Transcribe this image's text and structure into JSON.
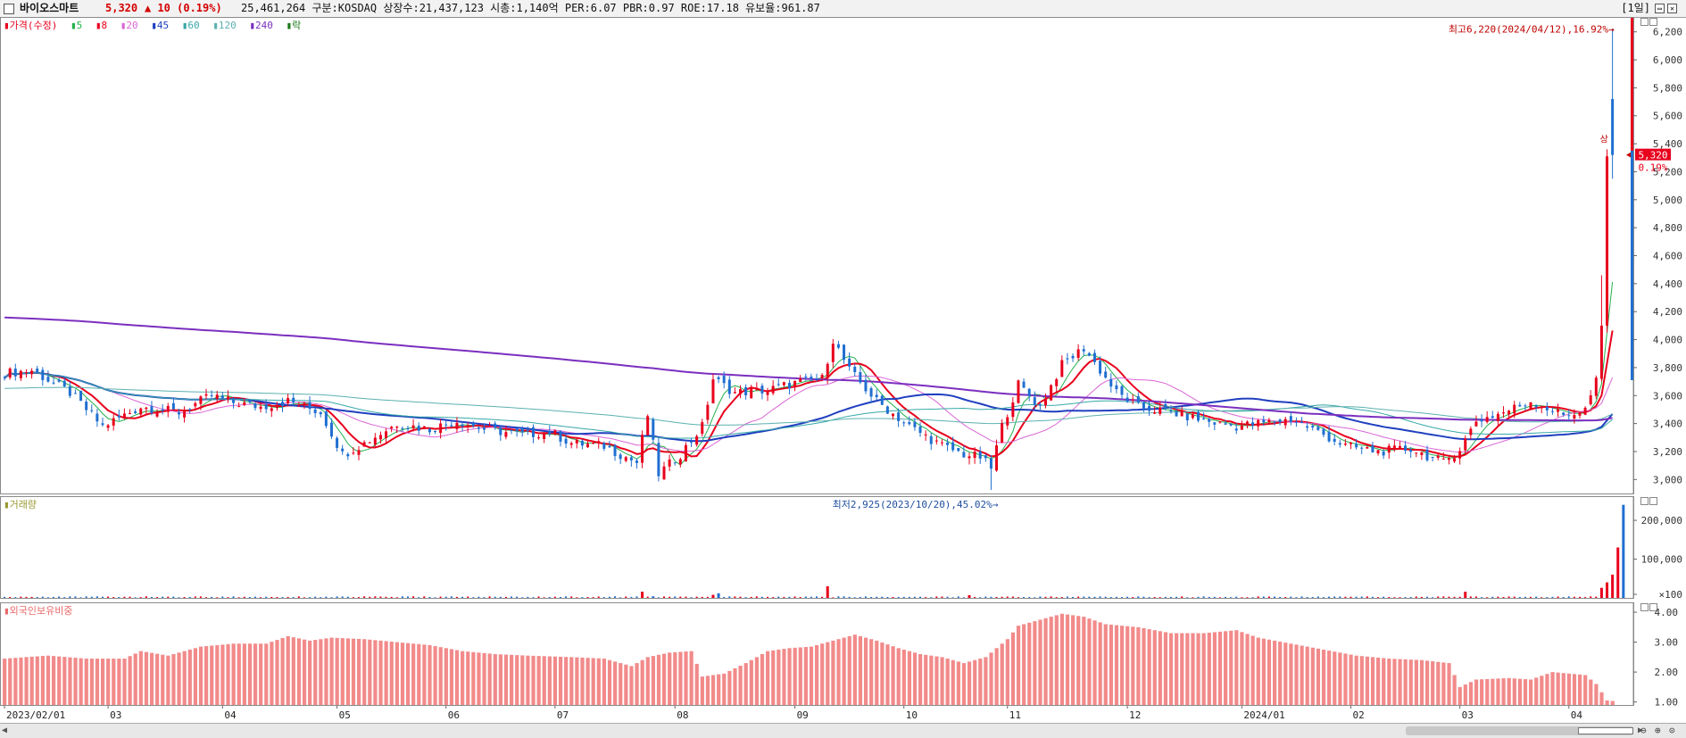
{
  "header": {
    "stock_name": "바이오스마트",
    "price": "5,320",
    "change": "▲ 10 (0.19%)",
    "stats": "25,461,264  구분:KOSDAQ 상장수:21,437,123 시총:1,140억 PER:6.07 PBR:0.97 ROE:17.18 유보율:961.87",
    "period": "[1일]"
  },
  "legend": {
    "price_label": "가격(수정)",
    "ma_items": [
      {
        "label": "5",
        "color": "#22b14c"
      },
      {
        "label": "8",
        "color": "#e8001c"
      },
      {
        "label": "20",
        "color": "#d966d6"
      },
      {
        "label": "45",
        "color": "#1f3fbf"
      },
      {
        "label": "60",
        "color": "#38a8a8"
      },
      {
        "label": "120",
        "color": "#5db0b0"
      },
      {
        "label": "240",
        "color": "#7b2fbf"
      },
      {
        "label": "락",
        "color": "#1a7a1a"
      }
    ],
    "volume_label": "거래량",
    "foreign_label": "외국인보유비중"
  },
  "annotations": {
    "high": "최고6,220(2024/04/12),16.92%→",
    "low": "최저2,925(2023/10/20),45.02%→",
    "current_price": "5,320",
    "current_pct": "0.19%",
    "arrow_char": "상"
  },
  "colors": {
    "up": "#e8001c",
    "down": "#1f6fd1",
    "grid": "#dcdcdc"
  },
  "chart_data": [
    {
      "type": "candlestick",
      "title": "가격(수정)",
      "y_ticks": [
        3000,
        3200,
        3400,
        3600,
        3800,
        4000,
        4200,
        4400,
        4600,
        4800,
        5000,
        5200,
        5400,
        5600,
        5800,
        6000,
        6200
      ],
      "y_tick_labels": [
        "3,000",
        "3,200",
        "3,400",
        "3,600",
        "3,800",
        "4,000",
        "4,200",
        "4,400",
        "4,600",
        "4,800",
        "5,000",
        "5,200",
        "5,400",
        "5,600",
        "5,800",
        "6,000",
        "6,200"
      ],
      "ylim": [
        2900,
        6300
      ],
      "x_labels": [
        "2023/02/01",
        "03",
        "04",
        "05",
        "06",
        "07",
        "08",
        "09",
        "10",
        "11",
        "12",
        "2024/01",
        "02",
        "03",
        "04"
      ],
      "x_label_index": [
        0,
        19,
        40,
        61,
        81,
        101,
        123,
        145,
        165,
        184,
        206,
        227,
        247,
        267,
        287
      ],
      "n_bars": 295,
      "close_keypoints": [
        [
          0,
          3760
        ],
        [
          5,
          3780
        ],
        [
          12,
          3620
        ],
        [
          18,
          3380
        ],
        [
          25,
          3520
        ],
        [
          32,
          3480
        ],
        [
          38,
          3600
        ],
        [
          42,
          3550
        ],
        [
          47,
          3520
        ],
        [
          52,
          3560
        ],
        [
          58,
          3480
        ],
        [
          62,
          3180
        ],
        [
          66,
          3260
        ],
        [
          72,
          3400
        ],
        [
          78,
          3360
        ],
        [
          83,
          3420
        ],
        [
          88,
          3360
        ],
        [
          95,
          3320
        ],
        [
          100,
          3340
        ],
        [
          104,
          3260
        ],
        [
          110,
          3240
        ],
        [
          116,
          3120
        ],
        [
          118,
          3460
        ],
        [
          120,
          3040
        ],
        [
          124,
          3180
        ],
        [
          128,
          3380
        ],
        [
          130,
          3720
        ],
        [
          134,
          3620
        ],
        [
          140,
          3640
        ],
        [
          146,
          3700
        ],
        [
          150,
          3720
        ],
        [
          152,
          4000
        ],
        [
          155,
          3780
        ],
        [
          160,
          3560
        ],
        [
          166,
          3380
        ],
        [
          172,
          3240
        ],
        [
          176,
          3180
        ],
        [
          179,
          3160
        ],
        [
          181,
          3080
        ],
        [
          183,
          3380
        ],
        [
          186,
          3680
        ],
        [
          190,
          3520
        ],
        [
          194,
          3820
        ],
        [
          198,
          3940
        ],
        [
          204,
          3620
        ],
        [
          208,
          3520
        ],
        [
          214,
          3480
        ],
        [
          220,
          3420
        ],
        [
          226,
          3380
        ],
        [
          230,
          3400
        ],
        [
          236,
          3430
        ],
        [
          240,
          3360
        ],
        [
          246,
          3240
        ],
        [
          252,
          3200
        ],
        [
          258,
          3220
        ],
        [
          264,
          3120
        ],
        [
          267,
          3220
        ],
        [
          270,
          3420
        ],
        [
          275,
          3480
        ],
        [
          280,
          3560
        ],
        [
          286,
          3460
        ],
        [
          290,
          3500
        ],
        [
          292,
          3700
        ],
        [
          293,
          4080
        ],
        [
          294,
          5310
        ],
        [
          295,
          5320
        ]
      ],
      "ma_series": [
        {
          "name": "5",
          "color": "#22b14c"
        },
        {
          "name": "8",
          "color": "#e8001c"
        },
        {
          "name": "20",
          "color": "#d966d6"
        },
        {
          "name": "45",
          "color": "#1f3fbf"
        },
        {
          "name": "60",
          "color": "#38a8a8"
        },
        {
          "name": "120",
          "color": "#5db0b0"
        },
        {
          "name": "240",
          "color": "#7b2fbf"
        }
      ],
      "high": {
        "value": 6220,
        "date": "2024/04/12",
        "pct": 16.92
      },
      "low": {
        "value": 2925,
        "date": "2023/10/20",
        "pct": 45.02
      },
      "current": 5320
    },
    {
      "type": "bar",
      "title": "거래량",
      "y_tick_labels": [
        "200,000",
        "100,000",
        "×100"
      ],
      "y_ticks": [
        200000,
        100000,
        0
      ],
      "ylim": [
        0,
        260000
      ],
      "spikes": [
        [
          117,
          16000,
          "up"
        ],
        [
          119,
          4000,
          "down"
        ],
        [
          130,
          8000,
          "up"
        ],
        [
          131,
          12000,
          "down"
        ],
        [
          151,
          30000,
          "up"
        ],
        [
          177,
          7000,
          "up"
        ],
        [
          268,
          16000,
          "up"
        ],
        [
          293,
          26000,
          "up"
        ],
        [
          294,
          40000,
          "up"
        ],
        [
          295,
          60000,
          "up"
        ],
        [
          296,
          130000,
          "up"
        ],
        [
          297,
          240000,
          "down"
        ]
      ]
    },
    {
      "type": "bar",
      "title": "외국인보유비중",
      "y_tick_labels": [
        "4.00",
        "3.00",
        "2.00",
        "1.00"
      ],
      "y_ticks": [
        4.0,
        3.0,
        2.0,
        1.0
      ],
      "ylim": [
        0.9,
        4.3
      ],
      "keypoints": [
        [
          0,
          2.45
        ],
        [
          8,
          2.55
        ],
        [
          15,
          2.45
        ],
        [
          22,
          2.45
        ],
        [
          25,
          2.7
        ],
        [
          30,
          2.55
        ],
        [
          36,
          2.85
        ],
        [
          42,
          2.95
        ],
        [
          48,
          2.95
        ],
        [
          52,
          3.2
        ],
        [
          56,
          3.05
        ],
        [
          60,
          3.15
        ],
        [
          66,
          3.1
        ],
        [
          72,
          3.0
        ],
        [
          78,
          2.9
        ],
        [
          84,
          2.7
        ],
        [
          90,
          2.6
        ],
        [
          96,
          2.55
        ],
        [
          104,
          2.5
        ],
        [
          110,
          2.45
        ],
        [
          115,
          2.2
        ],
        [
          118,
          2.5
        ],
        [
          122,
          2.65
        ],
        [
          126,
          2.7
        ],
        [
          128,
          1.85
        ],
        [
          132,
          1.95
        ],
        [
          136,
          2.3
        ],
        [
          140,
          2.7
        ],
        [
          144,
          2.8
        ],
        [
          148,
          2.85
        ],
        [
          152,
          3.05
        ],
        [
          156,
          3.25
        ],
        [
          160,
          3.05
        ],
        [
          164,
          2.8
        ],
        [
          168,
          2.6
        ],
        [
          172,
          2.5
        ],
        [
          176,
          2.3
        ],
        [
          180,
          2.5
        ],
        [
          184,
          3.1
        ],
        [
          186,
          3.55
        ],
        [
          190,
          3.75
        ],
        [
          194,
          3.95
        ],
        [
          198,
          3.85
        ],
        [
          202,
          3.6
        ],
        [
          208,
          3.5
        ],
        [
          214,
          3.3
        ],
        [
          220,
          3.3
        ],
        [
          226,
          3.4
        ],
        [
          230,
          3.15
        ],
        [
          236,
          2.95
        ],
        [
          242,
          2.75
        ],
        [
          248,
          2.55
        ],
        [
          254,
          2.45
        ],
        [
          260,
          2.4
        ],
        [
          265,
          2.3
        ],
        [
          267,
          1.5
        ],
        [
          270,
          1.75
        ],
        [
          276,
          1.8
        ],
        [
          280,
          1.75
        ],
        [
          284,
          2.0
        ],
        [
          290,
          1.9
        ],
        [
          292,
          1.6
        ],
        [
          294,
          1.05
        ],
        [
          297,
          1.0
        ]
      ]
    }
  ]
}
